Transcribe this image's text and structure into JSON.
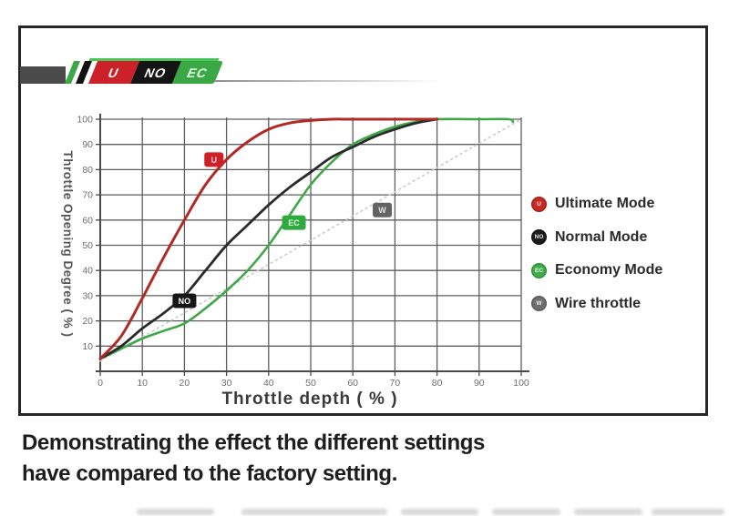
{
  "logo": {
    "badges": [
      {
        "label": "U",
        "color": "#cc2128",
        "text_color": "#ffffff"
      },
      {
        "label": "NO",
        "color": "#141414",
        "text_color": "#ffffff"
      },
      {
        "label": "EC",
        "color": "#3aa945",
        "text_color": "#e8ffe8"
      }
    ]
  },
  "legend": {
    "items": [
      {
        "badge": "U",
        "label": "Ultimate Mode",
        "color": "#c52a24"
      },
      {
        "badge": "NO",
        "label": "Normal Mode",
        "color": "#1b1b1b"
      },
      {
        "badge": "EC",
        "label": "Economy Mode",
        "color": "#3fae49"
      },
      {
        "badge": "W",
        "label": "Wire throttle",
        "color": "#6f6f6f"
      }
    ]
  },
  "caption": {
    "line1": "Demonstrating the effect the different settings",
    "line2": "have compared to the factory setting."
  },
  "chart_data": {
    "type": "line",
    "title": "",
    "xlabel": "Throttle depth ( % )",
    "ylabel": "Throttle Opening Degree ( % )",
    "xlim": [
      0,
      100
    ],
    "ylim": [
      0,
      100
    ],
    "grid": true,
    "legend_position": "right-outside",
    "x_ticks": [
      0,
      10,
      20,
      30,
      40,
      50,
      60,
      70,
      80,
      90,
      100
    ],
    "y_ticks": [
      10,
      20,
      30,
      40,
      50,
      60,
      70,
      80,
      90,
      100
    ],
    "grid_color": "#5f5f5f",
    "axis_color": "#4a4a4a",
    "tick_label_color": "#6e6e6e",
    "series": [
      {
        "name": "Wire throttle",
        "color": "#cccccc",
        "style": "dotted",
        "width": 1.6,
        "points": [
          [
            0,
            4
          ],
          [
            100,
            100
          ]
        ],
        "marker": {
          "label": "W",
          "x": 67,
          "y": 64,
          "bg": "#636363",
          "fg": "#e0e0e0"
        }
      },
      {
        "name": "Economy Mode",
        "color": "#3fa74a",
        "style": "solid",
        "width": 2.6,
        "points": [
          [
            0,
            5
          ],
          [
            5,
            9
          ],
          [
            10,
            13
          ],
          [
            15,
            16
          ],
          [
            20,
            19
          ],
          [
            25,
            25
          ],
          [
            30,
            32
          ],
          [
            35,
            40
          ],
          [
            40,
            50
          ],
          [
            45,
            62
          ],
          [
            50,
            74
          ],
          [
            55,
            83
          ],
          [
            60,
            90
          ],
          [
            65,
            94
          ],
          [
            70,
            97
          ],
          [
            75,
            99
          ],
          [
            80,
            100
          ],
          [
            90,
            100
          ],
          [
            97,
            100
          ],
          [
            98,
            99
          ]
        ],
        "marker": {
          "label": "EC",
          "x": 46,
          "y": 59,
          "bg": "#2faa3f",
          "fg": "#d9ffd9"
        }
      },
      {
        "name": "Normal Mode",
        "color": "#2a2a2a",
        "style": "solid",
        "width": 2.8,
        "points": [
          [
            0,
            5
          ],
          [
            5,
            10
          ],
          [
            10,
            17
          ],
          [
            15,
            23
          ],
          [
            20,
            30
          ],
          [
            25,
            40
          ],
          [
            30,
            50
          ],
          [
            35,
            58
          ],
          [
            40,
            66
          ],
          [
            45,
            73
          ],
          [
            50,
            79
          ],
          [
            55,
            85
          ],
          [
            60,
            89
          ],
          [
            65,
            93
          ],
          [
            70,
            96
          ],
          [
            75,
            98.5
          ],
          [
            80,
            100
          ]
        ],
        "marker": {
          "label": "NO",
          "x": 20,
          "y": 28,
          "bg": "#161616",
          "fg": "#ffffff"
        }
      },
      {
        "name": "Ultimate Mode",
        "color": "#b02a26",
        "style": "solid",
        "width": 3,
        "points": [
          [
            0,
            5
          ],
          [
            5,
            14
          ],
          [
            10,
            29
          ],
          [
            15,
            45
          ],
          [
            20,
            60
          ],
          [
            25,
            74
          ],
          [
            30,
            84
          ],
          [
            35,
            91
          ],
          [
            40,
            96
          ],
          [
            45,
            98.5
          ],
          [
            50,
            99.5
          ],
          [
            55,
            100
          ],
          [
            60,
            100
          ],
          [
            70,
            100
          ],
          [
            80,
            100
          ]
        ],
        "marker": {
          "label": "U",
          "x": 27,
          "y": 84,
          "bg": "#cf2027",
          "fg": "#ffd9d9"
        }
      }
    ]
  }
}
